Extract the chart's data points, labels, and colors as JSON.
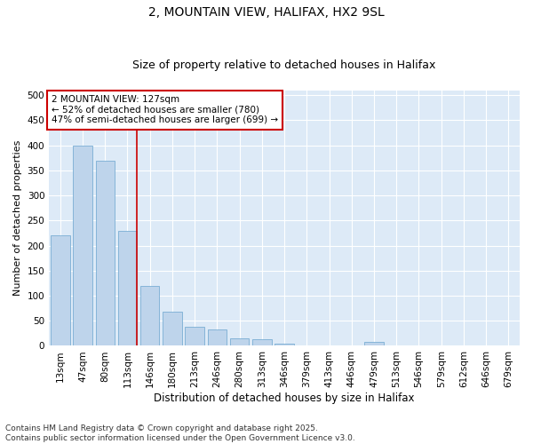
{
  "title1": "2, MOUNTAIN VIEW, HALIFAX, HX2 9SL",
  "title2": "Size of property relative to detached houses in Halifax",
  "xlabel": "Distribution of detached houses by size in Halifax",
  "ylabel": "Number of detached properties",
  "categories": [
    "13sqm",
    "47sqm",
    "80sqm",
    "113sqm",
    "146sqm",
    "180sqm",
    "213sqm",
    "246sqm",
    "280sqm",
    "313sqm",
    "346sqm",
    "379sqm",
    "413sqm",
    "446sqm",
    "479sqm",
    "513sqm",
    "546sqm",
    "579sqm",
    "612sqm",
    "646sqm",
    "679sqm"
  ],
  "values": [
    220,
    400,
    370,
    230,
    120,
    68,
    38,
    32,
    15,
    13,
    4,
    0,
    0,
    0,
    8,
    0,
    0,
    0,
    0,
    0,
    0
  ],
  "bar_color": "#bed4eb",
  "bar_edge_color": "#7aaed4",
  "background_color": "#ddeaf7",
  "grid_color": "#ffffff",
  "vline_color": "#cc0000",
  "annotation_text": "2 MOUNTAIN VIEW: 127sqm\n← 52% of detached houses are smaller (780)\n47% of semi-detached houses are larger (699) →",
  "annotation_box_color": "#ffffff",
  "annotation_box_edge": "#cc0000",
  "ylim": [
    0,
    510
  ],
  "yticks": [
    0,
    50,
    100,
    150,
    200,
    250,
    300,
    350,
    400,
    450,
    500
  ],
  "footer1": "Contains HM Land Registry data © Crown copyright and database right 2025.",
  "footer2": "Contains public sector information licensed under the Open Government Licence v3.0.",
  "title1_fontsize": 10,
  "title2_fontsize": 9,
  "xlabel_fontsize": 8.5,
  "ylabel_fontsize": 8,
  "tick_fontsize": 7.5,
  "annotation_fontsize": 7.5,
  "footer_fontsize": 6.5
}
